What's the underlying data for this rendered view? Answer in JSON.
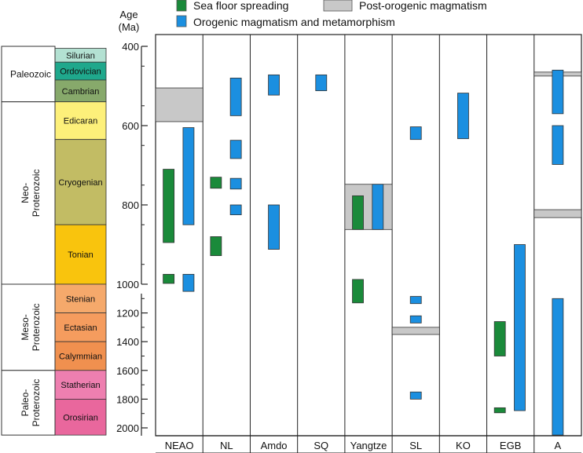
{
  "chart_data": {
    "type": "timeline-ranges",
    "title": "",
    "ylabel": [
      "Age",
      "(Ma)"
    ],
    "y_axis": {
      "scale": "piecewise-linear",
      "segments": [
        {
          "range": [
            400,
            1000
          ],
          "ticks": [
            400,
            600,
            800,
            1000
          ]
        },
        {
          "range": [
            1000,
            2050
          ],
          "ticks": [
            1200,
            1400,
            1600,
            1800,
            2000
          ]
        }
      ],
      "reversed": true
    },
    "columns": [
      "NEAO",
      "NL",
      "Amdo",
      "SQ",
      "Yangtze",
      "SL",
      "KO",
      "EGB",
      "A"
    ],
    "legend": {
      "placement": "top",
      "items": [
        {
          "key": "sea",
          "label": "Sea floor spreading",
          "color": "#1a8a3a"
        },
        {
          "key": "post",
          "label": "Post-orogenic magmatism",
          "color": "#c8c8c8"
        },
        {
          "key": "orogenic",
          "label": "Orogenic magmatism and metamorphism",
          "color": "#1b8fe0"
        }
      ]
    },
    "bars": [
      {
        "type": "post",
        "column": "NEAO",
        "slot": "full",
        "start": 505,
        "end": 590
      },
      {
        "type": "sea",
        "column": "NEAO",
        "slot": "left",
        "start": 710,
        "end": 895
      },
      {
        "type": "sea",
        "column": "NEAO",
        "slot": "left",
        "start": 975,
        "end": 998
      },
      {
        "type": "orogenic",
        "column": "NEAO",
        "slot": "right",
        "start": 605,
        "end": 850
      },
      {
        "type": "orogenic",
        "column": "NEAO",
        "slot": "right",
        "start": 975,
        "end": 1050
      },
      {
        "type": "orogenic",
        "column": "NL",
        "slot": "right",
        "start": 480,
        "end": 575
      },
      {
        "type": "orogenic",
        "column": "NL",
        "slot": "right",
        "start": 637,
        "end": 683
      },
      {
        "type": "orogenic",
        "column": "NL",
        "slot": "right",
        "start": 733,
        "end": 760
      },
      {
        "type": "orogenic",
        "column": "NL",
        "slot": "right",
        "start": 800,
        "end": 825
      },
      {
        "type": "sea",
        "column": "NL",
        "slot": "left",
        "start": 730,
        "end": 758
      },
      {
        "type": "sea",
        "column": "NL",
        "slot": "left",
        "start": 880,
        "end": 928
      },
      {
        "type": "orogenic",
        "column": "Amdo",
        "slot": "center",
        "start": 472,
        "end": 523
      },
      {
        "type": "orogenic",
        "column": "Amdo",
        "slot": "center",
        "start": 800,
        "end": 912
      },
      {
        "type": "orogenic",
        "column": "SQ",
        "slot": "center",
        "start": 472,
        "end": 512
      },
      {
        "type": "post",
        "column": "Yangtze",
        "slot": "full",
        "start": 748,
        "end": 862
      },
      {
        "type": "sea",
        "column": "Yangtze",
        "slot": "left",
        "start": 777,
        "end": 862
      },
      {
        "type": "orogenic",
        "column": "Yangtze",
        "slot": "right",
        "start": 748,
        "end": 862
      },
      {
        "type": "sea",
        "column": "Yangtze",
        "slot": "left",
        "start": 988,
        "end": 1130
      },
      {
        "type": "orogenic",
        "column": "SL",
        "slot": "center",
        "start": 603,
        "end": 635
      },
      {
        "type": "orogenic",
        "column": "SL",
        "slot": "center",
        "start": 1085,
        "end": 1135
      },
      {
        "type": "orogenic",
        "column": "SL",
        "slot": "center",
        "start": 1220,
        "end": 1270
      },
      {
        "type": "post",
        "column": "SL",
        "slot": "full",
        "start": 1300,
        "end": 1350
      },
      {
        "type": "orogenic",
        "column": "SL",
        "slot": "center",
        "start": 1750,
        "end": 1800
      },
      {
        "type": "orogenic",
        "column": "KO",
        "slot": "center",
        "start": 518,
        "end": 633
      },
      {
        "type": "sea",
        "column": "EGB",
        "slot": "left",
        "start": 1260,
        "end": 1500
      },
      {
        "type": "sea",
        "column": "EGB",
        "slot": "left",
        "start": 1860,
        "end": 1895
      },
      {
        "type": "orogenic",
        "column": "EGB",
        "slot": "right",
        "start": 900,
        "end": 1880
      },
      {
        "type": "post",
        "column": "A",
        "slot": "full",
        "start": 465,
        "end": 475
      },
      {
        "type": "orogenic",
        "column": "A",
        "slot": "center",
        "start": 460,
        "end": 570
      },
      {
        "type": "orogenic",
        "column": "A",
        "slot": "center",
        "start": 600,
        "end": 698
      },
      {
        "type": "post",
        "column": "A",
        "slot": "full",
        "start": 812,
        "end": 832
      },
      {
        "type": "orogenic",
        "column": "A",
        "slot": "center",
        "start": 1100,
        "end": 2050
      }
    ]
  },
  "timescale": {
    "eras": [
      {
        "label": "Paleozoic",
        "lines": [
          "Paleozoic"
        ],
        "start": 400,
        "end": 540
      },
      {
        "label": "Neo-Proterozoic",
        "lines": [
          "Neo-",
          "Proterozoic"
        ],
        "start": 540,
        "end": 1000
      },
      {
        "label": "Meso-Proterozoic",
        "lines": [
          "Meso-",
          "Proterozoic"
        ],
        "start": 1000,
        "end": 1600
      },
      {
        "label": "Paleo-Proterozoic",
        "lines": [
          "Paleo-",
          "Proterozoic"
        ],
        "start": 1600,
        "end": 2050
      }
    ],
    "periods": [
      {
        "label": "Silurian",
        "start": 405,
        "end": 440,
        "color": "#b3e1d2"
      },
      {
        "label": "Ordovician",
        "start": 440,
        "end": 485,
        "color": "#1fa88c"
      },
      {
        "label": "Cambrian",
        "start": 485,
        "end": 540,
        "color": "#87a96b"
      },
      {
        "label": "Edicaran",
        "start": 540,
        "end": 635,
        "color": "#fdf07a"
      },
      {
        "label": "Cryogenian",
        "start": 635,
        "end": 850,
        "color": "#c2bc64"
      },
      {
        "label": "Tonian",
        "start": 850,
        "end": 1000,
        "color": "#f9c40d"
      },
      {
        "label": "Stenian",
        "start": 1000,
        "end": 1200,
        "color": "#f5a96b"
      },
      {
        "label": "Ectasian",
        "start": 1200,
        "end": 1400,
        "color": "#f59c5e"
      },
      {
        "label": "Calymmian",
        "start": 1400,
        "end": 1600,
        "color": "#f0904f"
      },
      {
        "label": "Statherian",
        "start": 1600,
        "end": 1800,
        "color": "#ee7fb0"
      },
      {
        "label": "Orosirian",
        "start": 1800,
        "end": 2050,
        "color": "#e9679d"
      }
    ]
  }
}
